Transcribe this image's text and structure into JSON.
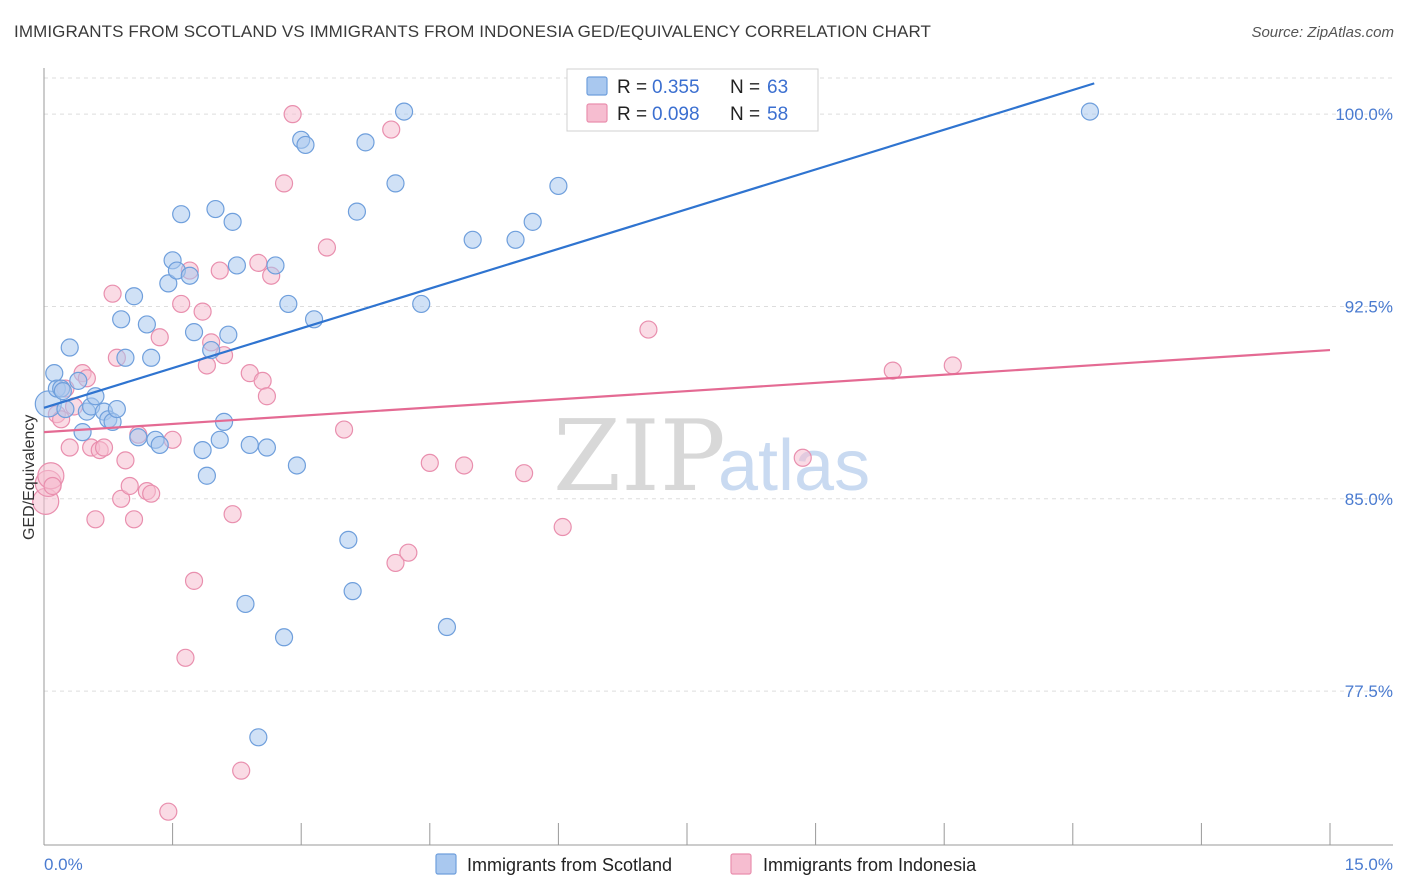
{
  "title": "IMMIGRANTS FROM SCOTLAND VS IMMIGRANTS FROM INDONESIA GED/EQUIVALENCY CORRELATION CHART",
  "source": "Source: ZipAtlas.com",
  "watermark": {
    "zip": "ZIP",
    "atlas": "atlas"
  },
  "colors": {
    "scotland_fill": "#a9c8ef",
    "scotland_stroke": "#6f9fdc",
    "scotland_line": "#2f74d0",
    "indonesia_fill": "#f6bdd0",
    "indonesia_stroke": "#e98fae",
    "indonesia_line": "#e46a93",
    "grid": "#dddddd",
    "axis_label": "#4a7bd0"
  },
  "legend": {
    "r_label": "R =",
    "n_label": "N =",
    "scotland": {
      "r": "0.355",
      "n": "63"
    },
    "indonesia": {
      "r": "0.098",
      "n": "58"
    }
  },
  "chart_data": {
    "type": "scatter",
    "xlabel": "",
    "ylabel": "GED/Equivalency",
    "xlim": [
      0,
      15
    ],
    "ylim": [
      71.5,
      101.8
    ],
    "x_tick_labels": [
      "0.0%",
      "15.0%"
    ],
    "y_ticks": [
      77.5,
      85.0,
      92.5,
      100.0
    ],
    "y_tick_labels": [
      "77.5%",
      "85.0%",
      "92.5%",
      "100.0%"
    ],
    "grid": true,
    "legend_position": "top-center",
    "series": [
      {
        "name": "Immigrants from Scotland",
        "trend": {
          "x": [
            0.0,
            12.25
          ],
          "y": [
            88.55,
            101.2
          ]
        },
        "points": [
          [
            0.05,
            88.7
          ],
          [
            0.12,
            89.9
          ],
          [
            0.15,
            89.3
          ],
          [
            0.2,
            89.3
          ],
          [
            0.22,
            89.2
          ],
          [
            0.25,
            88.5
          ],
          [
            0.3,
            90.9
          ],
          [
            0.4,
            89.6
          ],
          [
            0.45,
            87.6
          ],
          [
            0.5,
            88.4
          ],
          [
            0.55,
            88.6
          ],
          [
            0.6,
            89.0
          ],
          [
            0.7,
            88.4
          ],
          [
            0.75,
            88.1
          ],
          [
            0.8,
            88.0
          ],
          [
            0.85,
            88.5
          ],
          [
            0.9,
            92.0
          ],
          [
            0.95,
            90.5
          ],
          [
            1.05,
            92.9
          ],
          [
            1.1,
            87.4
          ],
          [
            1.2,
            91.8
          ],
          [
            1.25,
            90.5
          ],
          [
            1.3,
            87.3
          ],
          [
            1.35,
            87.1
          ],
          [
            1.45,
            93.4
          ],
          [
            1.5,
            94.3
          ],
          [
            1.55,
            93.9
          ],
          [
            1.6,
            96.1
          ],
          [
            1.7,
            93.7
          ],
          [
            1.75,
            91.5
          ],
          [
            1.85,
            86.9
          ],
          [
            1.9,
            85.9
          ],
          [
            1.95,
            90.8
          ],
          [
            2.0,
            96.3
          ],
          [
            2.05,
            87.3
          ],
          [
            2.1,
            88.0
          ],
          [
            2.15,
            91.4
          ],
          [
            2.2,
            95.8
          ],
          [
            2.25,
            94.1
          ],
          [
            2.35,
            80.9
          ],
          [
            2.4,
            87.1
          ],
          [
            2.5,
            75.7
          ],
          [
            2.6,
            87.0
          ],
          [
            2.7,
            94.1
          ],
          [
            2.8,
            79.6
          ],
          [
            2.85,
            92.6
          ],
          [
            2.95,
            86.3
          ],
          [
            3.0,
            99.0
          ],
          [
            3.05,
            98.8
          ],
          [
            3.15,
            92.0
          ],
          [
            3.55,
            83.4
          ],
          [
            3.6,
            81.4
          ],
          [
            3.65,
            96.2
          ],
          [
            3.75,
            98.9
          ],
          [
            4.1,
            97.3
          ],
          [
            4.2,
            100.1
          ],
          [
            4.4,
            92.6
          ],
          [
            4.7,
            80.0
          ],
          [
            5.0,
            95.1
          ],
          [
            5.5,
            95.1
          ],
          [
            5.7,
            95.8
          ],
          [
            6.0,
            97.2
          ],
          [
            12.2,
            100.1
          ]
        ]
      },
      {
        "name": "Immigrants from Indonesia",
        "trend": {
          "x": [
            0.0,
            15.0
          ],
          "y": [
            87.6,
            90.8
          ]
        },
        "points": [
          [
            0.02,
            84.9
          ],
          [
            0.05,
            85.6
          ],
          [
            0.08,
            85.9
          ],
          [
            0.1,
            85.5
          ],
          [
            0.15,
            88.3
          ],
          [
            0.2,
            88.1
          ],
          [
            0.25,
            89.3
          ],
          [
            0.3,
            87.0
          ],
          [
            0.35,
            88.6
          ],
          [
            0.45,
            89.9
          ],
          [
            0.5,
            89.7
          ],
          [
            0.55,
            87.0
          ],
          [
            0.6,
            84.2
          ],
          [
            0.65,
            86.9
          ],
          [
            0.7,
            87.0
          ],
          [
            0.8,
            93.0
          ],
          [
            0.85,
            90.5
          ],
          [
            0.9,
            85.0
          ],
          [
            0.95,
            86.5
          ],
          [
            1.0,
            85.5
          ],
          [
            1.05,
            84.2
          ],
          [
            1.1,
            87.5
          ],
          [
            1.2,
            85.3
          ],
          [
            1.25,
            85.2
          ],
          [
            1.35,
            91.3
          ],
          [
            1.45,
            72.8
          ],
          [
            1.5,
            87.3
          ],
          [
            1.6,
            92.6
          ],
          [
            1.65,
            78.8
          ],
          [
            1.7,
            93.9
          ],
          [
            1.75,
            81.8
          ],
          [
            1.85,
            92.3
          ],
          [
            1.9,
            90.2
          ],
          [
            1.95,
            91.1
          ],
          [
            2.05,
            93.9
          ],
          [
            2.1,
            90.6
          ],
          [
            2.2,
            84.4
          ],
          [
            2.3,
            74.4
          ],
          [
            2.4,
            89.9
          ],
          [
            2.5,
            94.2
          ],
          [
            2.55,
            89.6
          ],
          [
            2.6,
            89.0
          ],
          [
            2.65,
            93.7
          ],
          [
            2.8,
            97.3
          ],
          [
            2.9,
            100.0
          ],
          [
            3.3,
            94.8
          ],
          [
            3.5,
            87.7
          ],
          [
            4.05,
            99.4
          ],
          [
            4.1,
            82.5
          ],
          [
            4.25,
            82.9
          ],
          [
            4.5,
            86.4
          ],
          [
            4.9,
            86.3
          ],
          [
            5.6,
            86.0
          ],
          [
            6.05,
            83.9
          ],
          [
            7.05,
            91.6
          ],
          [
            8.85,
            86.6
          ],
          [
            9.9,
            90.0
          ],
          [
            10.6,
            90.2
          ]
        ]
      }
    ]
  },
  "bottom_legend": {
    "scotland": "Immigrants from Scotland",
    "indonesia": "Immigrants from Indonesia"
  }
}
